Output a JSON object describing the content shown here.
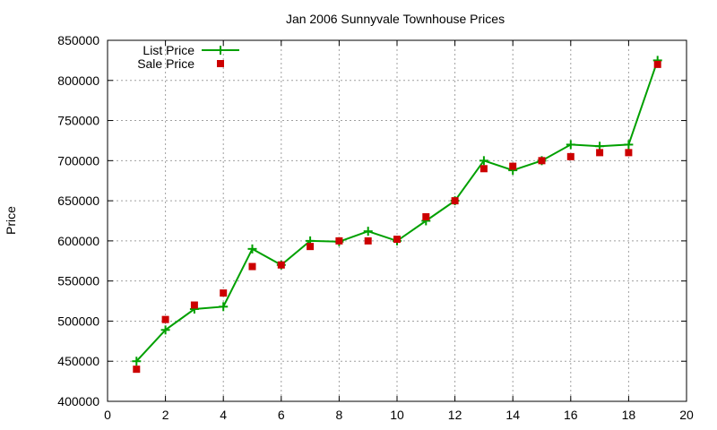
{
  "chart_data": {
    "type": "line",
    "title": "Jan 2006 Sunnyvale Townhouse Prices",
    "xlabel": "",
    "ylabel": "Price",
    "xlim": [
      0,
      20
    ],
    "ylim": [
      400000,
      850000
    ],
    "xticks": [
      0,
      2,
      4,
      6,
      8,
      10,
      12,
      14,
      16,
      18,
      20
    ],
    "yticks": [
      400000,
      450000,
      500000,
      550000,
      600000,
      650000,
      700000,
      750000,
      800000,
      850000
    ],
    "grid": true,
    "legend_position": "top-left",
    "series": [
      {
        "name": "List Price",
        "style": "line-with-plus-markers",
        "color": "#00a000",
        "x": [
          1,
          2,
          3,
          4,
          5,
          6,
          7,
          8,
          9,
          10,
          11,
          12,
          13,
          14,
          15,
          16,
          17,
          18,
          19
        ],
        "y": [
          450000,
          489000,
          515000,
          518000,
          590000,
          570000,
          600000,
          599000,
          612000,
          600000,
          625000,
          650000,
          700000,
          688000,
          700000,
          720000,
          718000,
          720000,
          825000
        ]
      },
      {
        "name": "Sale Price",
        "style": "square-markers",
        "color": "#cc0000",
        "x": [
          1,
          2,
          3,
          4,
          5,
          6,
          7,
          8,
          9,
          10,
          11,
          12,
          13,
          14,
          15,
          16,
          17,
          18,
          19
        ],
        "y": [
          440000,
          502000,
          520000,
          535000,
          568000,
          570000,
          593000,
          600000,
          600000,
          602000,
          630000,
          650000,
          690000,
          693000,
          700000,
          705000,
          710000,
          710000,
          820000
        ]
      }
    ]
  }
}
